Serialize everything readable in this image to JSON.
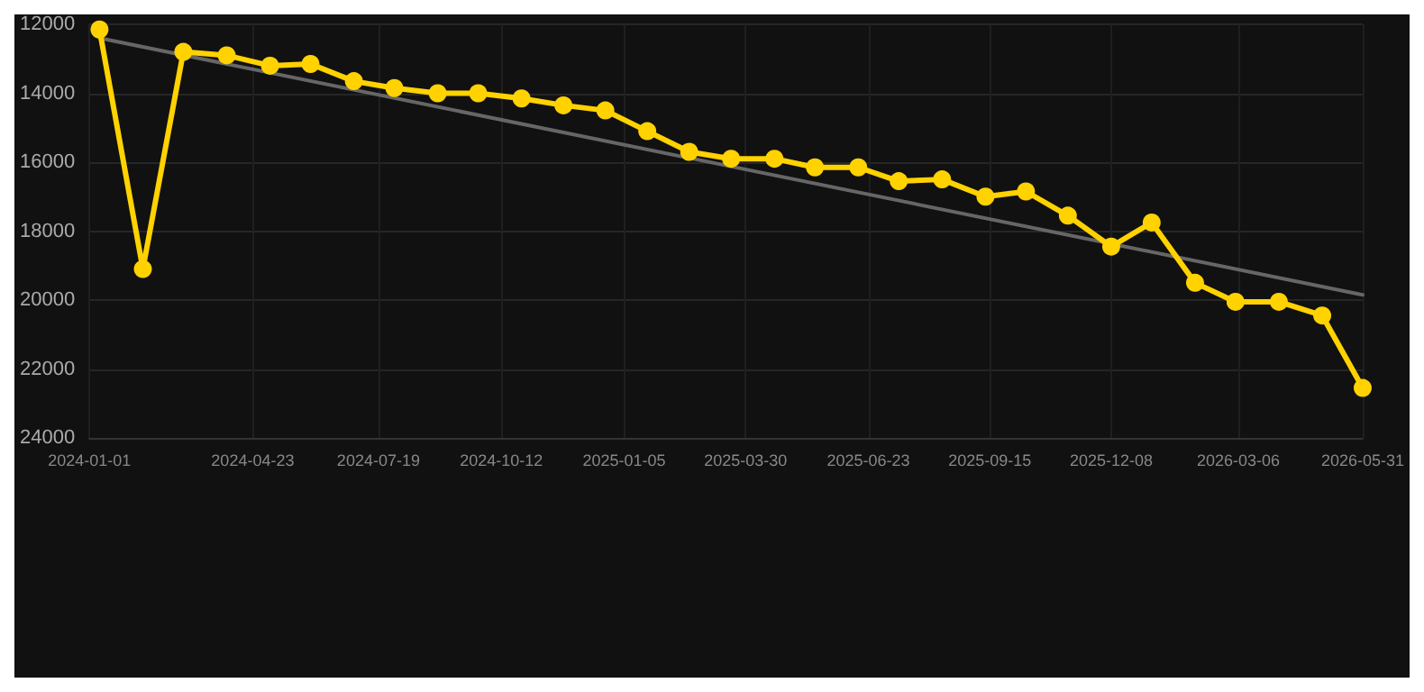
{
  "chart_data": {
    "type": "line",
    "x": [
      "2024-01-08",
      "2024-02-07",
      "2024-03-06",
      "2024-04-05",
      "2024-05-05",
      "2024-06-02",
      "2024-07-02",
      "2024-07-30",
      "2024-08-29",
      "2024-09-26",
      "2024-10-26",
      "2024-11-24",
      "2024-12-23",
      "2025-01-21",
      "2025-02-19",
      "2025-03-20",
      "2025-04-19",
      "2025-05-17",
      "2025-06-16",
      "2025-07-14",
      "2025-08-13",
      "2025-09-12",
      "2025-10-10",
      "2025-11-08",
      "2025-12-08",
      "2026-01-05",
      "2026-02-04",
      "2026-03-04",
      "2026-04-03",
      "2026-05-03",
      "2026-05-31"
    ],
    "series": [
      {
        "color": "#ffd200",
        "values": [
          12150,
          19100,
          12800,
          12900,
          13200,
          13150,
          13650,
          13850,
          14000,
          14000,
          14150,
          14350,
          14500,
          15100,
          15700,
          15900,
          15900,
          16150,
          16150,
          16550,
          16500,
          17000,
          16850,
          17550,
          18450,
          17750,
          19500,
          20050,
          20050,
          20450,
          22550
        ]
      },
      {
        "type": "line",
        "color": "#666666",
        "marker": "none",
        "x": [
          "2024-01-08",
          "2026-05-31"
        ],
        "values": [
          12400,
          19850
        ]
      }
    ],
    "ylim": [
      24000,
      12000
    ],
    "yticks": [
      12000,
      14000,
      16000,
      18000,
      20000,
      22000,
      24000
    ],
    "xlim": [
      "2024-01-01",
      "2026-05-31"
    ],
    "xticks": [
      "2024-01-01",
      "2024-04-23",
      "2024-07-19",
      "2024-10-12",
      "2025-01-05",
      "2025-03-30",
      "2025-06-23",
      "2025-09-15",
      "2025-12-08",
      "2026-03-06",
      "2026-05-31"
    ],
    "grid": true,
    "marker": "circle"
  }
}
